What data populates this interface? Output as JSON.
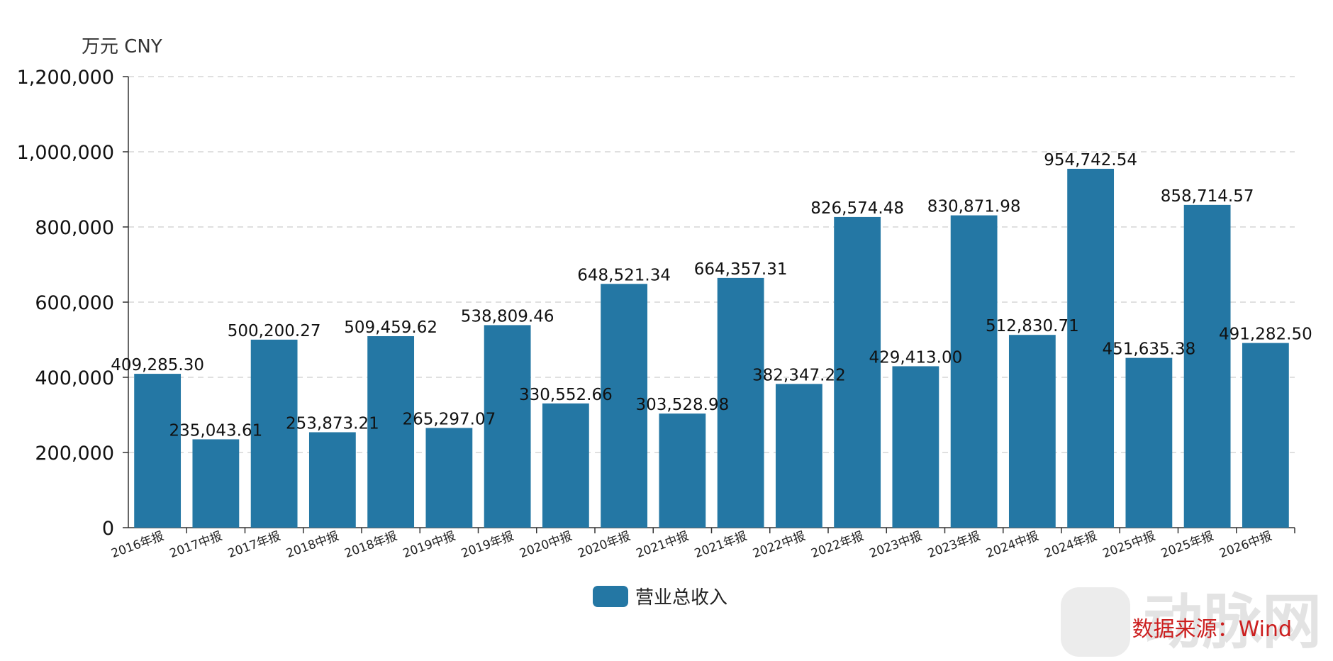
{
  "chart_data": {
    "type": "bar",
    "unit_label": "万元  CNY",
    "categories": [
      "2016年报",
      "2017中报",
      "2017年报",
      "2018中报",
      "2018年报",
      "2019中报",
      "2019年报",
      "2020中报",
      "2020年报",
      "2021中报",
      "2021年报",
      "2022中报",
      "2022年报",
      "2023中报",
      "2023年报",
      "2024中报",
      "2024年报",
      "2025中报",
      "2025年报",
      "2026中报"
    ],
    "series": [
      {
        "name": "营业总收入",
        "color": "#2477a4",
        "values": [
          409285.3,
          235043.61,
          500200.27,
          253873.21,
          509459.62,
          265297.07,
          538809.46,
          330552.66,
          648521.34,
          303528.98,
          664357.31,
          382347.22,
          826574.48,
          429413.0,
          830871.98,
          512830.71,
          954742.54,
          451635.38,
          858714.57,
          491282.5
        ],
        "labels": [
          "409,285.30",
          "235,043.61",
          "500,200.27",
          "253,873.21",
          "509,459.62",
          "265,297.07",
          "538,809.46",
          "330,552.66",
          "648,521.34",
          "303,528.98",
          "664,357.31",
          "382,347.22",
          "826,574.48",
          "429,413.00",
          "830,871.98",
          "512,830.71",
          "954,742.54",
          "451,635.38",
          "858,714.57",
          "491,282.50"
        ]
      }
    ],
    "ylim": [
      0,
      1200000
    ],
    "yticks": [
      0,
      200000,
      400000,
      600000,
      800000,
      1000000,
      1200000
    ],
    "ytick_labels": [
      "0",
      "200,000",
      "400,000",
      "600,000",
      "800,000",
      "1,000,000",
      "1,200,000"
    ],
    "grid": true,
    "legend_position": "bottom-center"
  },
  "source_label": "数据来源：Wind",
  "watermark": "动脉网"
}
